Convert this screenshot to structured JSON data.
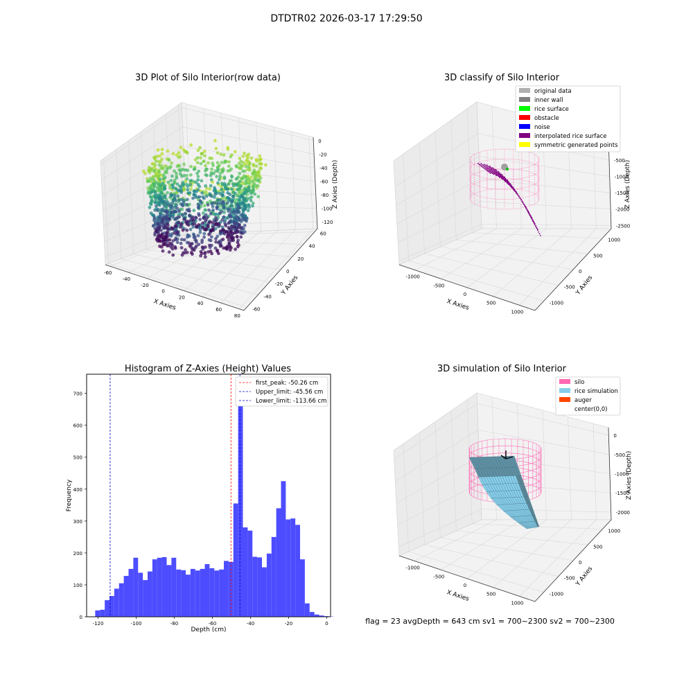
{
  "figure": {
    "suptitle": "DTDTR02 2026-03-17 17:29:50",
    "footer": "flag = 23   avgDepth = 643 cm   sv1 = 700~2300   sv2 = 700~2300"
  },
  "colors": {
    "hist_bar": "#4d4dff",
    "first_peak_line": "#ff0000",
    "limit_line": "#0000cc",
    "silo": "#ff69b4",
    "rice_simulation": "#87ceeb",
    "auger": "#ff4500",
    "interpolated": "#800080"
  },
  "chart_data": [
    {
      "type": "scatter3d",
      "title": "3D Plot of Silo Interior(row data)",
      "xlabel": "X Axies",
      "ylabel": "Y Axies",
      "zlabel": "Z Axies (Depth)",
      "xlim": [
        -65,
        85
      ],
      "ylim": [
        -65,
        65
      ],
      "zlim": [
        -130,
        5
      ],
      "xticks": [
        -60,
        -40,
        -20,
        0,
        20,
        40,
        60,
        80
      ],
      "yticks": [
        -60,
        -40,
        -20,
        0,
        20,
        40,
        60
      ],
      "zticks": [
        0,
        -20,
        -40,
        -60,
        -80,
        -100,
        -120
      ],
      "colormap": "viridis",
      "description_series": "silo point cloud, depth-colored"
    },
    {
      "type": "scatter3d",
      "title": "3D classify of Silo Interior",
      "xlim": [
        -1300,
        1300
      ],
      "ylim": [
        -1300,
        1300
      ],
      "zlim": [
        -2600,
        200
      ],
      "xticks": [
        -1000,
        -500,
        0,
        500,
        1000
      ],
      "yticks": [
        -1000,
        -500,
        0,
        500,
        1000
      ],
      "zticks": [
        -500,
        -1000,
        -1500,
        -2000,
        -2500
      ],
      "xlabel": "X Axies",
      "ylabel": "Y Axies",
      "zlabel": "Z Axies (Depth)",
      "legend": [
        {
          "label": "original data",
          "color": "#b0b0b0"
        },
        {
          "label": "inner wall",
          "color": "#808080"
        },
        {
          "label": "rice surface",
          "color": "#00ff00"
        },
        {
          "label": "obstacle",
          "color": "#ff0000"
        },
        {
          "label": "noise",
          "color": "#0000ff"
        },
        {
          "label": "interpolated rice surface",
          "color": "#800080"
        },
        {
          "label": "symmetric generated points",
          "color": "#ffff00"
        }
      ]
    },
    {
      "type": "bar",
      "title": "Histogram of Z-Axies (Height) Values",
      "xlabel": "Depth (cm)",
      "ylabel": "Frequency",
      "xlim": [
        -126,
        2
      ],
      "ylim": [
        0,
        760
      ],
      "xticks": [
        -120,
        -100,
        -80,
        -60,
        -40,
        -20,
        0
      ],
      "yticks": [
        0,
        100,
        200,
        300,
        400,
        500,
        600,
        700
      ],
      "bin_start": -121.5,
      "bin_width": 2.5,
      "values": [
        20,
        22,
        52,
        65,
        88,
        105,
        128,
        150,
        185,
        138,
        115,
        142,
        180,
        185,
        187,
        162,
        185,
        148,
        146,
        132,
        150,
        145,
        150,
        165,
        152,
        145,
        148,
        175,
        172,
        355,
        720,
        280,
        270,
        188,
        186,
        155,
        198,
        250,
        340,
        425,
        305,
        308,
        288,
        180,
        42,
        15,
        7,
        4,
        2,
        1
      ],
      "vlines": [
        {
          "label": "first_peak: -50.26 cm",
          "x": -50.26,
          "color": "#ff0000"
        },
        {
          "label": "Upper_limit: -45.56 cm",
          "x": -45.56,
          "color": "#0000cc"
        },
        {
          "label": "Lower_limit: -113.66 cm",
          "x": -113.66,
          "color": "#0000cc"
        }
      ]
    },
    {
      "type": "surface3d",
      "title": "3D simulation of Silo Interior",
      "xlim": [
        -1300,
        1300
      ],
      "ylim": [
        -1300,
        1300
      ],
      "zlim": [
        -2200,
        200
      ],
      "xticks": [
        -1000,
        -500,
        0,
        500,
        1000
      ],
      "yticks": [
        -1000,
        -500,
        0,
        500,
        1000
      ],
      "zticks": [
        0,
        -500,
        -1000,
        -1500,
        -2000
      ],
      "xlabel": "X Axies",
      "ylabel": "Y Axies",
      "zlabel": "Z Axies (Depth)",
      "legend": [
        {
          "label": "silo",
          "color": "#ff69b4"
        },
        {
          "label": "rice simulation",
          "color": "#87ceeb"
        },
        {
          "label": "auger",
          "color": "#ff4500"
        },
        {
          "label": "center(0,0)",
          "color": "#ffffff"
        }
      ]
    }
  ]
}
